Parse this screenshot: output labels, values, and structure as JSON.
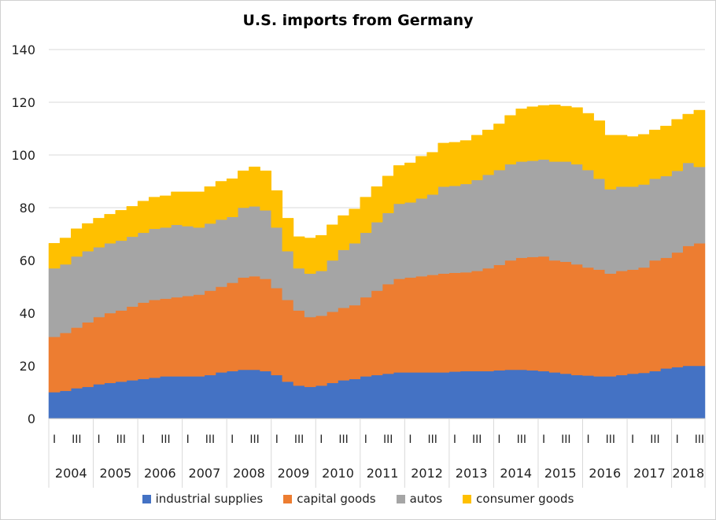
{
  "chart_data": {
    "type": "area",
    "title": "U.S. imports from Germany",
    "xlabel": "",
    "ylabel": "",
    "ylim": [
      0,
      140
    ],
    "yticks": [
      0,
      20,
      40,
      60,
      80,
      100,
      120,
      140
    ],
    "grid": true,
    "legend_position": "bottom",
    "stacked": true,
    "x_quarter_labels": [
      "I",
      "III"
    ],
    "years": [
      "2004",
      "2005",
      "2006",
      "2007",
      "2008",
      "2009",
      "2010",
      "2011",
      "2012",
      "2013",
      "2014",
      "2015",
      "2016",
      "2017",
      "2018"
    ],
    "series": [
      {
        "name": "industrial supplies",
        "color": "#4472C4",
        "values": [
          10,
          10.5,
          11.5,
          12,
          13,
          13.5,
          14,
          14.5,
          15,
          15.5,
          16,
          16,
          16,
          16,
          16.5,
          17.5,
          18,
          18.5,
          18.5,
          18,
          16.5,
          14,
          12.5,
          12,
          12.5,
          13.5,
          14.5,
          15,
          16,
          16.5,
          17,
          17.5,
          17.5,
          17.5,
          17.5,
          17.5,
          17.8,
          18,
          18,
          18,
          18.3,
          18.5,
          18.5,
          18.3,
          18,
          17.5,
          17,
          16.5,
          16.3,
          16,
          16,
          16.5,
          17,
          17.3,
          18,
          19,
          19.5,
          20,
          20
        ]
      },
      {
        "name": "capital goods",
        "color": "#ED7D31",
        "values": [
          21,
          22,
          23,
          24.5,
          25.5,
          26.5,
          27,
          28,
          29,
          29.5,
          29.5,
          30,
          30.5,
          31,
          32,
          32.5,
          33.5,
          35,
          35.5,
          35,
          33,
          31,
          28.5,
          26.5,
          26.5,
          27,
          27.5,
          28,
          30,
          32,
          34,
          35.5,
          36,
          36.5,
          37,
          37.5,
          37.5,
          37.5,
          38,
          39,
          40,
          41.5,
          42.5,
          43,
          43.5,
          42.5,
          42.5,
          42,
          41,
          40.5,
          39,
          39.5,
          39.5,
          40,
          42,
          42,
          43.5,
          45.5,
          46.5
        ]
      },
      {
        "name": "autos",
        "color": "#A5A5A5",
        "values": [
          26,
          26,
          27,
          27,
          26.5,
          26.5,
          26.5,
          26.5,
          26.5,
          27,
          27,
          27.5,
          26.5,
          25.5,
          25.5,
          25.5,
          25,
          26.5,
          26.5,
          26,
          23,
          18.5,
          16,
          16.5,
          17,
          19.5,
          22,
          23.5,
          24.5,
          26,
          27,
          28.5,
          28.5,
          29.5,
          30.5,
          33,
          33,
          33.5,
          34.5,
          35.5,
          36,
          36.5,
          36.5,
          36.5,
          36.8,
          37.5,
          38,
          38,
          37,
          34.5,
          32,
          32,
          31.5,
          31.5,
          31,
          31,
          31,
          31.5,
          29
        ]
      },
      {
        "name": "consumer goods",
        "color": "#FFC000",
        "values": [
          9.5,
          10,
          10.5,
          10.5,
          11,
          11,
          11.5,
          11.5,
          12,
          12,
          12,
          12.5,
          13,
          13.5,
          14,
          14.5,
          14.5,
          14,
          15,
          15,
          14,
          12.5,
          12,
          13.5,
          13.5,
          13.5,
          13,
          13,
          13.5,
          13.5,
          14,
          14.5,
          15,
          16,
          16,
          16.5,
          16.5,
          16.5,
          17,
          17,
          17.5,
          18.5,
          20,
          20.5,
          20.5,
          21.5,
          21,
          21.5,
          21.5,
          22,
          20.5,
          19.5,
          19,
          19,
          18.5,
          19,
          19.5,
          18.5,
          21.5
        ]
      }
    ]
  }
}
